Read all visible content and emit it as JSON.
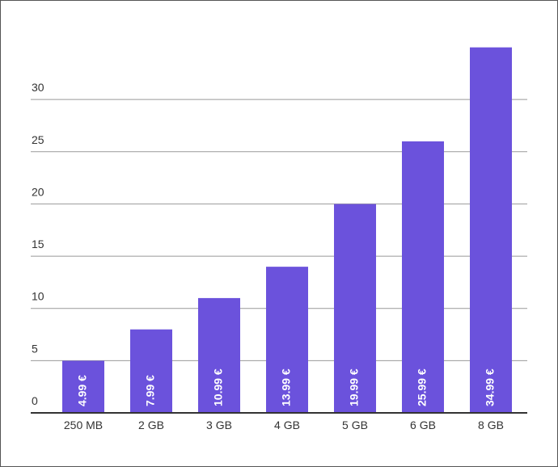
{
  "chart_data": {
    "type": "bar",
    "categories": [
      "250 MB",
      "2 GB",
      "3 GB",
      "4 GB",
      "5 GB",
      "6 GB",
      "8 GB"
    ],
    "values": [
      4.99,
      7.99,
      10.99,
      13.99,
      19.99,
      25.99,
      34.99
    ],
    "value_labels": [
      "4.99 €",
      "7.99 €",
      "10.99 €",
      "13.99 €",
      "19.99 €",
      "25.99 €",
      "34.99 €"
    ],
    "color": "#6b52dc",
    "ylim": [
      0,
      35
    ],
    "yticks": [
      0,
      5,
      10,
      15,
      20,
      25,
      30
    ],
    "grid": true
  }
}
